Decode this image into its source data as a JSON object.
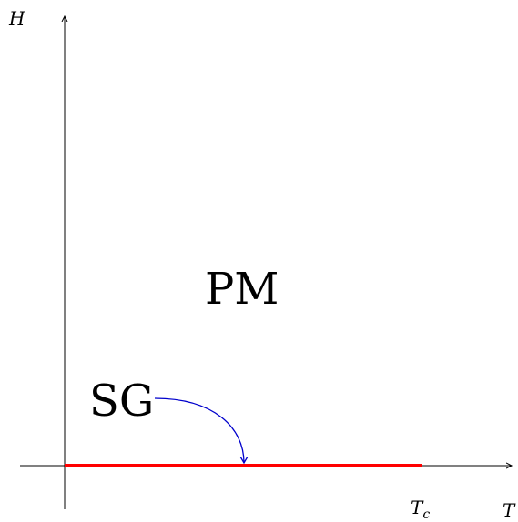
{
  "diagram": {
    "axis_labels": {
      "y": "H",
      "x": "T"
    },
    "regions": {
      "paramagnetic": "PM",
      "spin_glass": "SG"
    },
    "critical_point": {
      "label": "T",
      "subscript": "c"
    },
    "colors": {
      "axis": "#000000",
      "phase_line": "#ff0000",
      "arrow": "#0000cc"
    }
  }
}
